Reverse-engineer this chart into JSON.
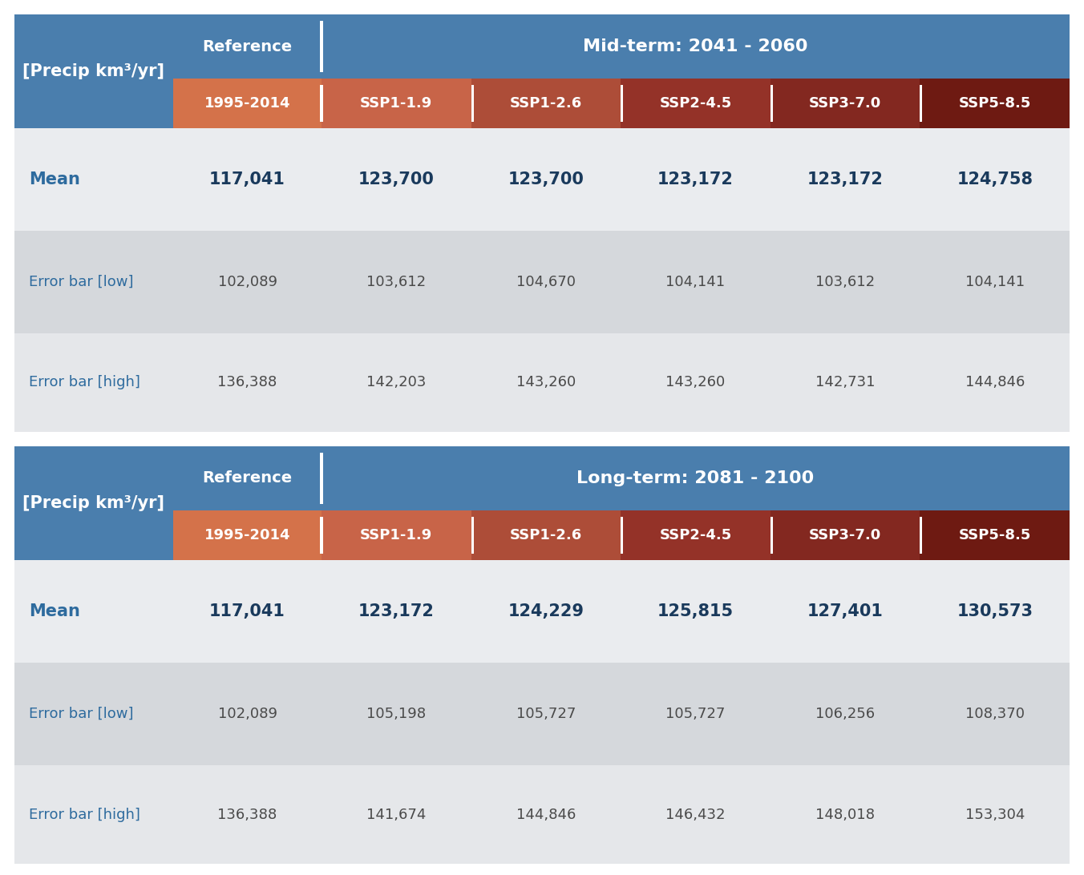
{
  "col_header_row1_label": "[Precip km³/yr]",
  "col_header_ref_label": "Reference",
  "midterm_label": "Mid-term: 2041 - 2060",
  "longterm_label": "Long-term: 2081 - 2100",
  "subheaders": [
    "1995-2014",
    "SSP1-1.9",
    "SSP1-2.6",
    "SSP2-4.5",
    "SSP3-7.0",
    "SSP5-8.5"
  ],
  "row_labels": [
    "Mean",
    "Error bar [low]",
    "Error bar [high]"
  ],
  "midterm_data": [
    [
      "117,041",
      "123,700",
      "123,700",
      "123,172",
      "123,172",
      "124,758"
    ],
    [
      "102,089",
      "103,612",
      "104,670",
      "104,141",
      "103,612",
      "104,141"
    ],
    [
      "136,388",
      "142,203",
      "143,260",
      "143,260",
      "142,731",
      "144,846"
    ]
  ],
  "longterm_data": [
    [
      "117,041",
      "123,172",
      "124,229",
      "125,815",
      "127,401",
      "130,573"
    ],
    [
      "102,089",
      "105,198",
      "105,727",
      "105,727",
      "106,256",
      "108,370"
    ],
    [
      "136,388",
      "141,674",
      "144,846",
      "146,432",
      "148,018",
      "153,304"
    ]
  ],
  "header_blue": "#4A7EAD",
  "ref_orange": "#D4724A",
  "ssp_colors": [
    "#C86448",
    "#AD4D38",
    "#943228",
    "#832820",
    "#6E1A12"
  ],
  "mean_bg": "#EAECEF",
  "errlow_bg": "#D5D8DC",
  "errhigh_bg": "#E5E7EA",
  "text_white": "#FFFFFF",
  "text_blue_label": "#2E6B9E",
  "text_dark_blue": "#1A3A5C",
  "text_gray_val": "#4A4A4A",
  "divider_color": "#FFFFFF",
  "bg_color": "#FFFFFF"
}
